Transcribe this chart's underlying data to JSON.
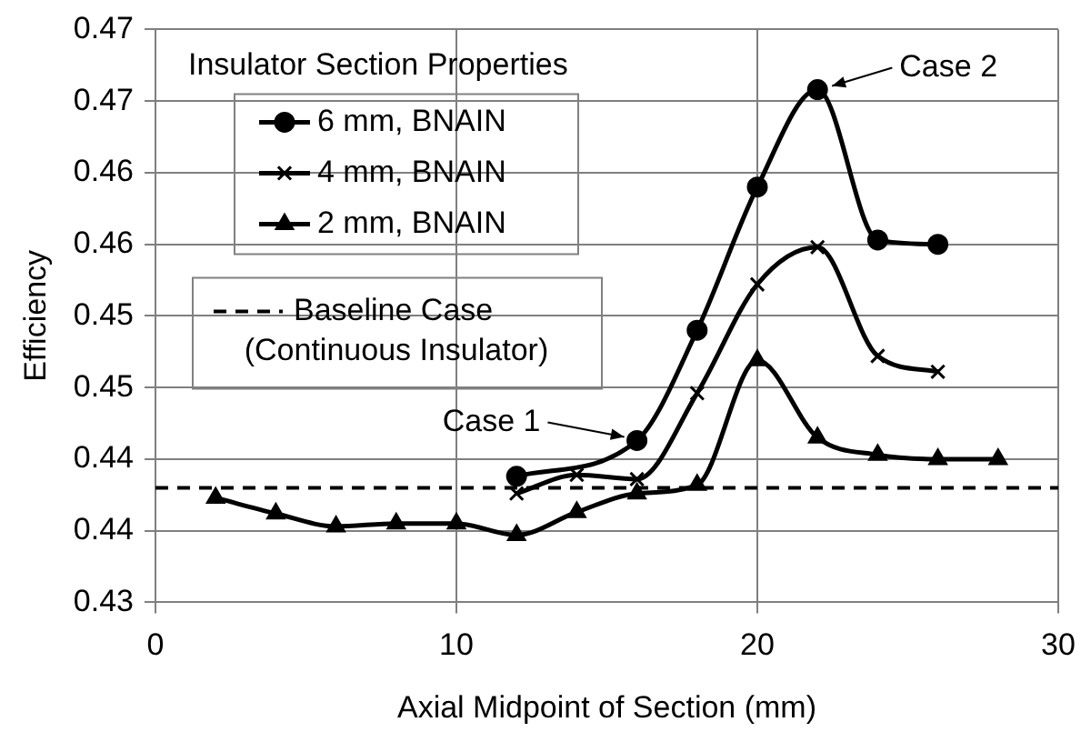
{
  "chart_data": {
    "type": "line",
    "xlabel": "Axial Midpoint of Section (mm)",
    "ylabel": "Efficiency",
    "legend_title": "Insulator Section Properties",
    "legend": "top left",
    "grid": true,
    "xlim": [
      0,
      30
    ],
    "xticks": [
      0,
      10,
      20,
      30
    ],
    "ylim": [
      0.43,
      0.47
    ],
    "yticks": [
      {
        "value": 0.43,
        "label": "0.43"
      },
      {
        "value": 0.435,
        "label": "0.44"
      },
      {
        "value": 0.44,
        "label": "0.44"
      },
      {
        "value": 0.445,
        "label": "0.45"
      },
      {
        "value": 0.45,
        "label": "0.45"
      },
      {
        "value": 0.455,
        "label": "0.46"
      },
      {
        "value": 0.46,
        "label": "0.46"
      },
      {
        "value": 0.465,
        "label": "0.47"
      },
      {
        "value": 0.47,
        "label": "0.47"
      }
    ],
    "series": [
      {
        "name": "6 mm, BNAIN",
        "color": "#000000",
        "marker": "circle",
        "x": [
          12,
          14,
          16,
          18,
          20,
          22,
          24,
          26
        ],
        "values": [
          0.4388,
          null,
          0.4413,
          0.449,
          0.459,
          0.4658,
          0.4553,
          0.455
        ]
      },
      {
        "name": "4 mm, BNAIN",
        "color": "#000000",
        "marker": "cross",
        "x": [
          12,
          14,
          16,
          18,
          20,
          22,
          24,
          26
        ],
        "values": [
          0.4376,
          0.4389,
          0.4386,
          0.4446,
          0.4522,
          0.4548,
          0.4472,
          0.4461
        ]
      },
      {
        "name": "2 mm, BNAIN",
        "color": "#000000",
        "marker": "triangle",
        "x": [
          2,
          4,
          6,
          8,
          10,
          12,
          14,
          16,
          18,
          20,
          22,
          24,
          26,
          28
        ],
        "values": [
          0.4373,
          0.4362,
          0.4353,
          0.4355,
          0.4355,
          0.4347,
          0.4363,
          0.4376,
          0.4382,
          0.4469,
          0.4415,
          0.4403,
          0.44,
          0.44
        ]
      }
    ],
    "ref_lines": [
      {
        "axis": "y",
        "value": 0.438,
        "label": "Baseline Case\n(Continuous Insulator)",
        "color": "#000000",
        "line_style": "dashed"
      }
    ],
    "annotations": [
      {
        "text": "Case 1",
        "x": 16,
        "y": 0.4413
      },
      {
        "text": "Case 2",
        "x": 22,
        "y": 0.4658
      }
    ]
  }
}
